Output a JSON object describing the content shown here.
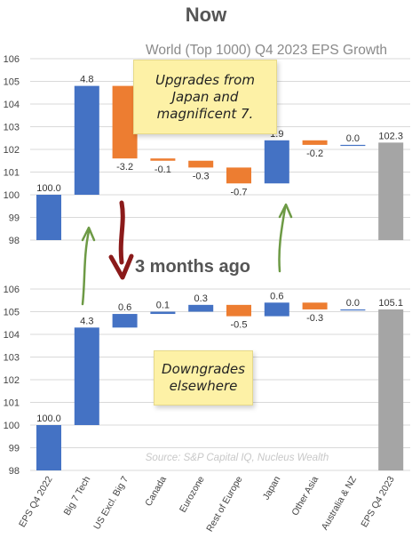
{
  "page": {
    "title": "Now",
    "subtitle": "3 months ago",
    "note_top": "Upgrades from\nJapan and\nmagnificent 7.",
    "note_bottom": "Downgrades\nelsewhere",
    "source": "Source: S&P Capital IQ, Nucleus Wealth",
    "colors": {
      "up": "#4472c4",
      "down": "#ed7d31",
      "total": "#a5a5a5",
      "arrow_down": "#8b1a1a",
      "arrow_up": "#6d9a45"
    }
  },
  "chart_data": [
    {
      "type": "waterfall",
      "title": "World (Top 1000) Q4 2023 EPS Growth",
      "ylim": [
        98,
        106
      ],
      "yticks": [
        "106",
        "105",
        "104",
        "103",
        "102",
        "101",
        "100",
        "99",
        "98"
      ],
      "categories": [
        "EPS Q4 2022",
        "Big 7 Tech",
        "US Excl. Big 7",
        "Canada",
        "Eurozone",
        "Rest of Europe",
        "Japan",
        "Other Asia",
        "Australia & NZ",
        "EPS Q4 2023"
      ],
      "values": [
        100.0,
        4.8,
        -3.2,
        -0.1,
        -0.3,
        -0.7,
        1.9,
        -0.2,
        0.0,
        102.3
      ],
      "labels": [
        "100.0",
        "4.8",
        "-3.2",
        "-0.1",
        "-0.3",
        "-0.7",
        "1.9",
        "-0.2",
        "0.0",
        "102.3"
      ]
    },
    {
      "type": "waterfall",
      "title": "",
      "ylim": [
        98,
        106
      ],
      "yticks": [
        "106",
        "105",
        "104",
        "103",
        "102",
        "101",
        "100",
        "99",
        "98"
      ],
      "categories": [
        "EPS Q4 2022",
        "Big 7 Tech",
        "US Excl. Big 7",
        "Canada",
        "Eurozone",
        "Rest of Europe",
        "Japan",
        "Other Asia",
        "Australia & NZ",
        "EPS Q4 2023"
      ],
      "values": [
        100.0,
        4.3,
        0.6,
        0.1,
        0.3,
        -0.5,
        0.6,
        -0.3,
        0.0,
        105.1
      ],
      "labels": [
        "100.0",
        "4.3",
        "0.6",
        "0.1",
        "0.3",
        "-0.5",
        "0.6",
        "-0.3",
        "0.0",
        "105.1"
      ]
    }
  ]
}
